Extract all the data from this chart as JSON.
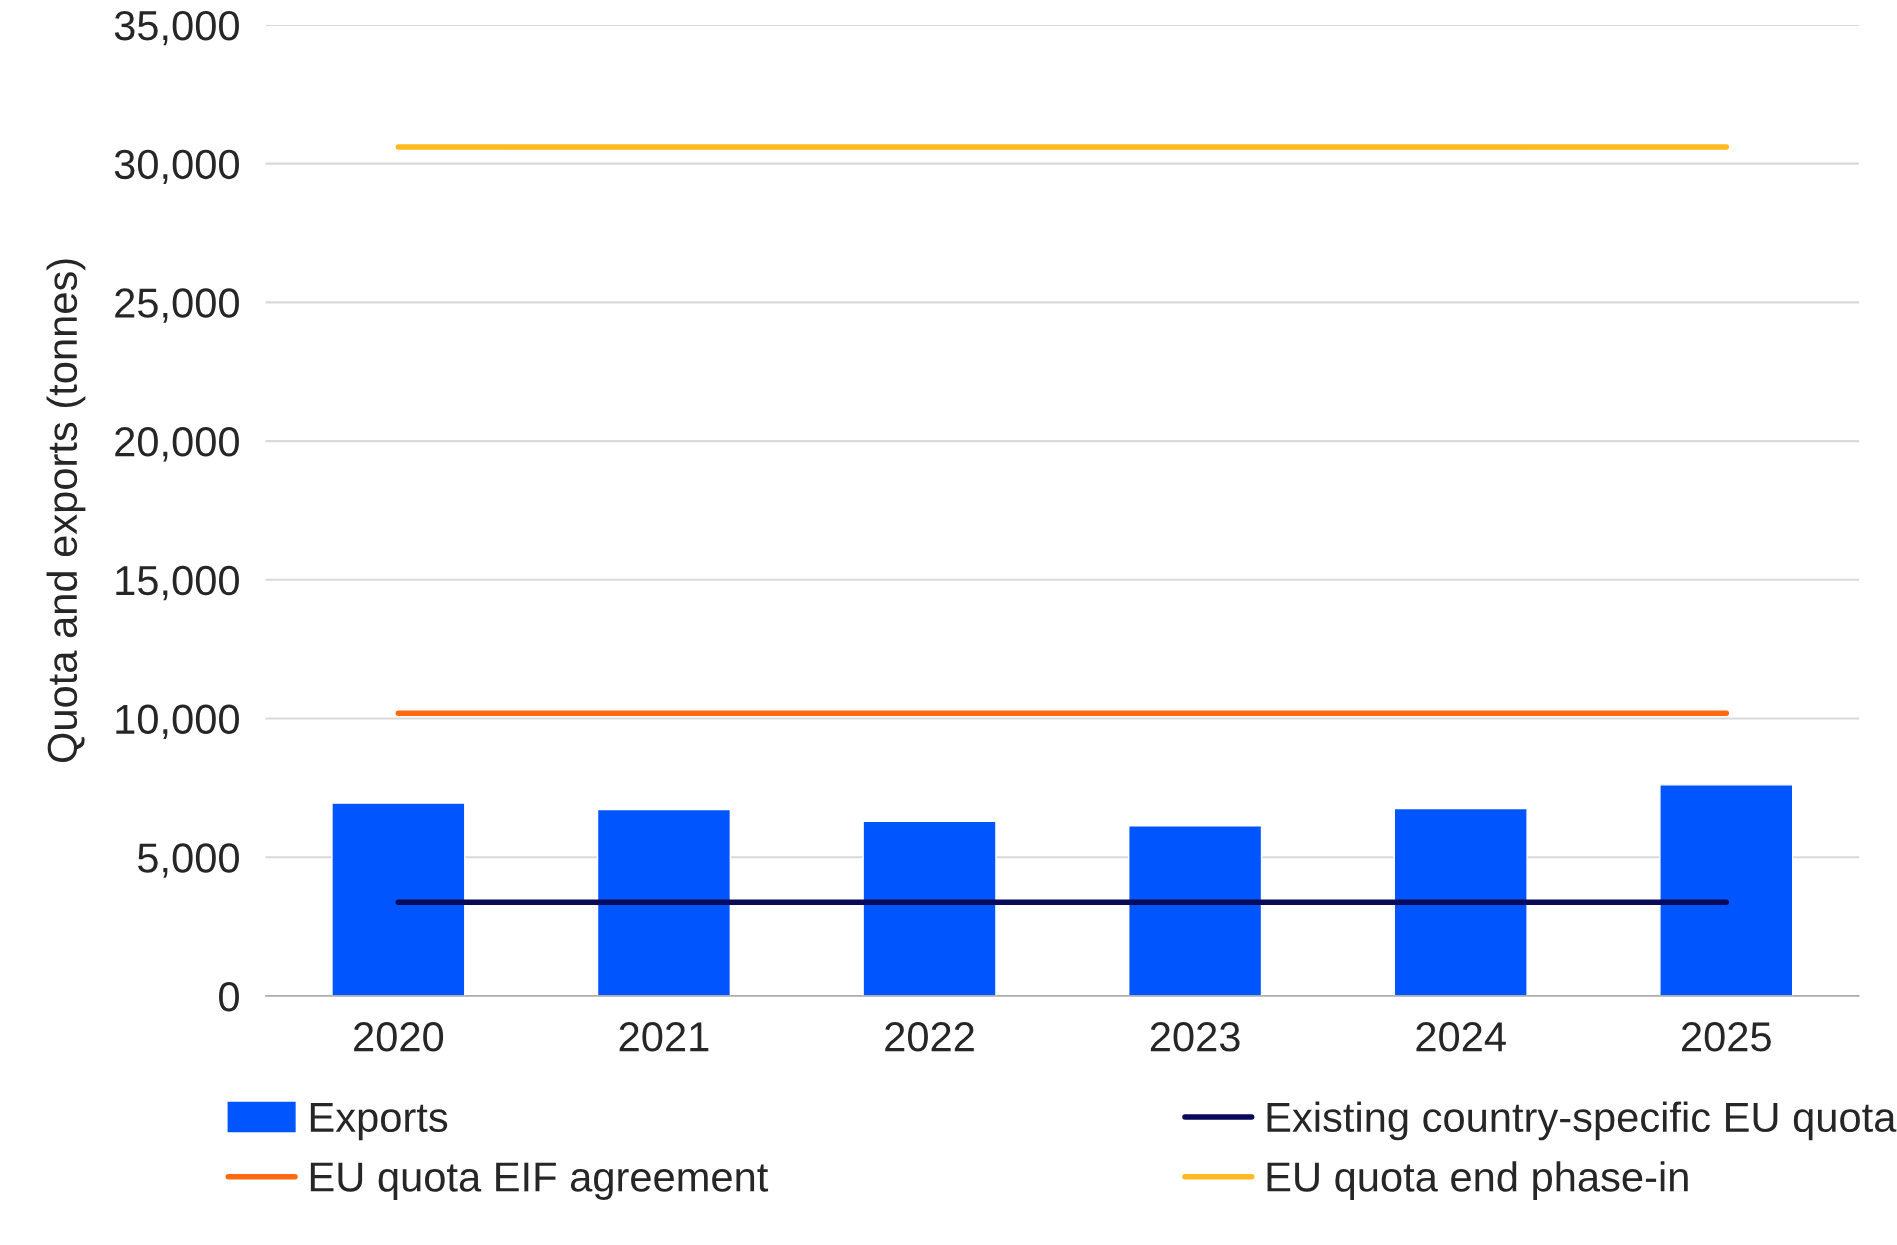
{
  "chart_data": {
    "type": "bar",
    "ylabel": "Quota and exports (tonnes)",
    "categories": [
      "2020",
      "2021",
      "2022",
      "2023",
      "2024",
      "2025"
    ],
    "series": [
      {
        "name": "Exports",
        "color": "#0055ff",
        "values": [
          6950,
          6720,
          6300,
          6130,
          6760,
          7610
        ]
      },
      {
        "name": "Existing country-specific EU quota",
        "type": "line",
        "color": "#0a0a5a",
        "values": [
          3380,
          3380,
          3380,
          3380,
          3380,
          3380
        ]
      },
      {
        "name": "EU quota EIF agreement",
        "type": "line",
        "color": "#ff6a10",
        "values": [
          10190,
          10190,
          10190,
          10190,
          10190,
          10190
        ]
      },
      {
        "name": "EU quota end phase-in",
        "type": "line",
        "color": "#ffba1e",
        "values": [
          30600,
          30600,
          30600,
          30600,
          30600,
          30600
        ]
      }
    ],
    "ylim": [
      0,
      35000
    ],
    "yticks": [
      {
        "value": 0,
        "label": "0"
      },
      {
        "value": 5000,
        "label": "5,000"
      },
      {
        "value": 10000,
        "label": "10,000"
      },
      {
        "value": 15000,
        "label": "15,000"
      },
      {
        "value": 20000,
        "label": "20,000"
      },
      {
        "value": 25000,
        "label": "25,000"
      },
      {
        "value": 30000,
        "label": "30,000"
      },
      {
        "value": 35000,
        "label": "35,000"
      }
    ],
    "grid": "y",
    "legend": "bottom"
  }
}
